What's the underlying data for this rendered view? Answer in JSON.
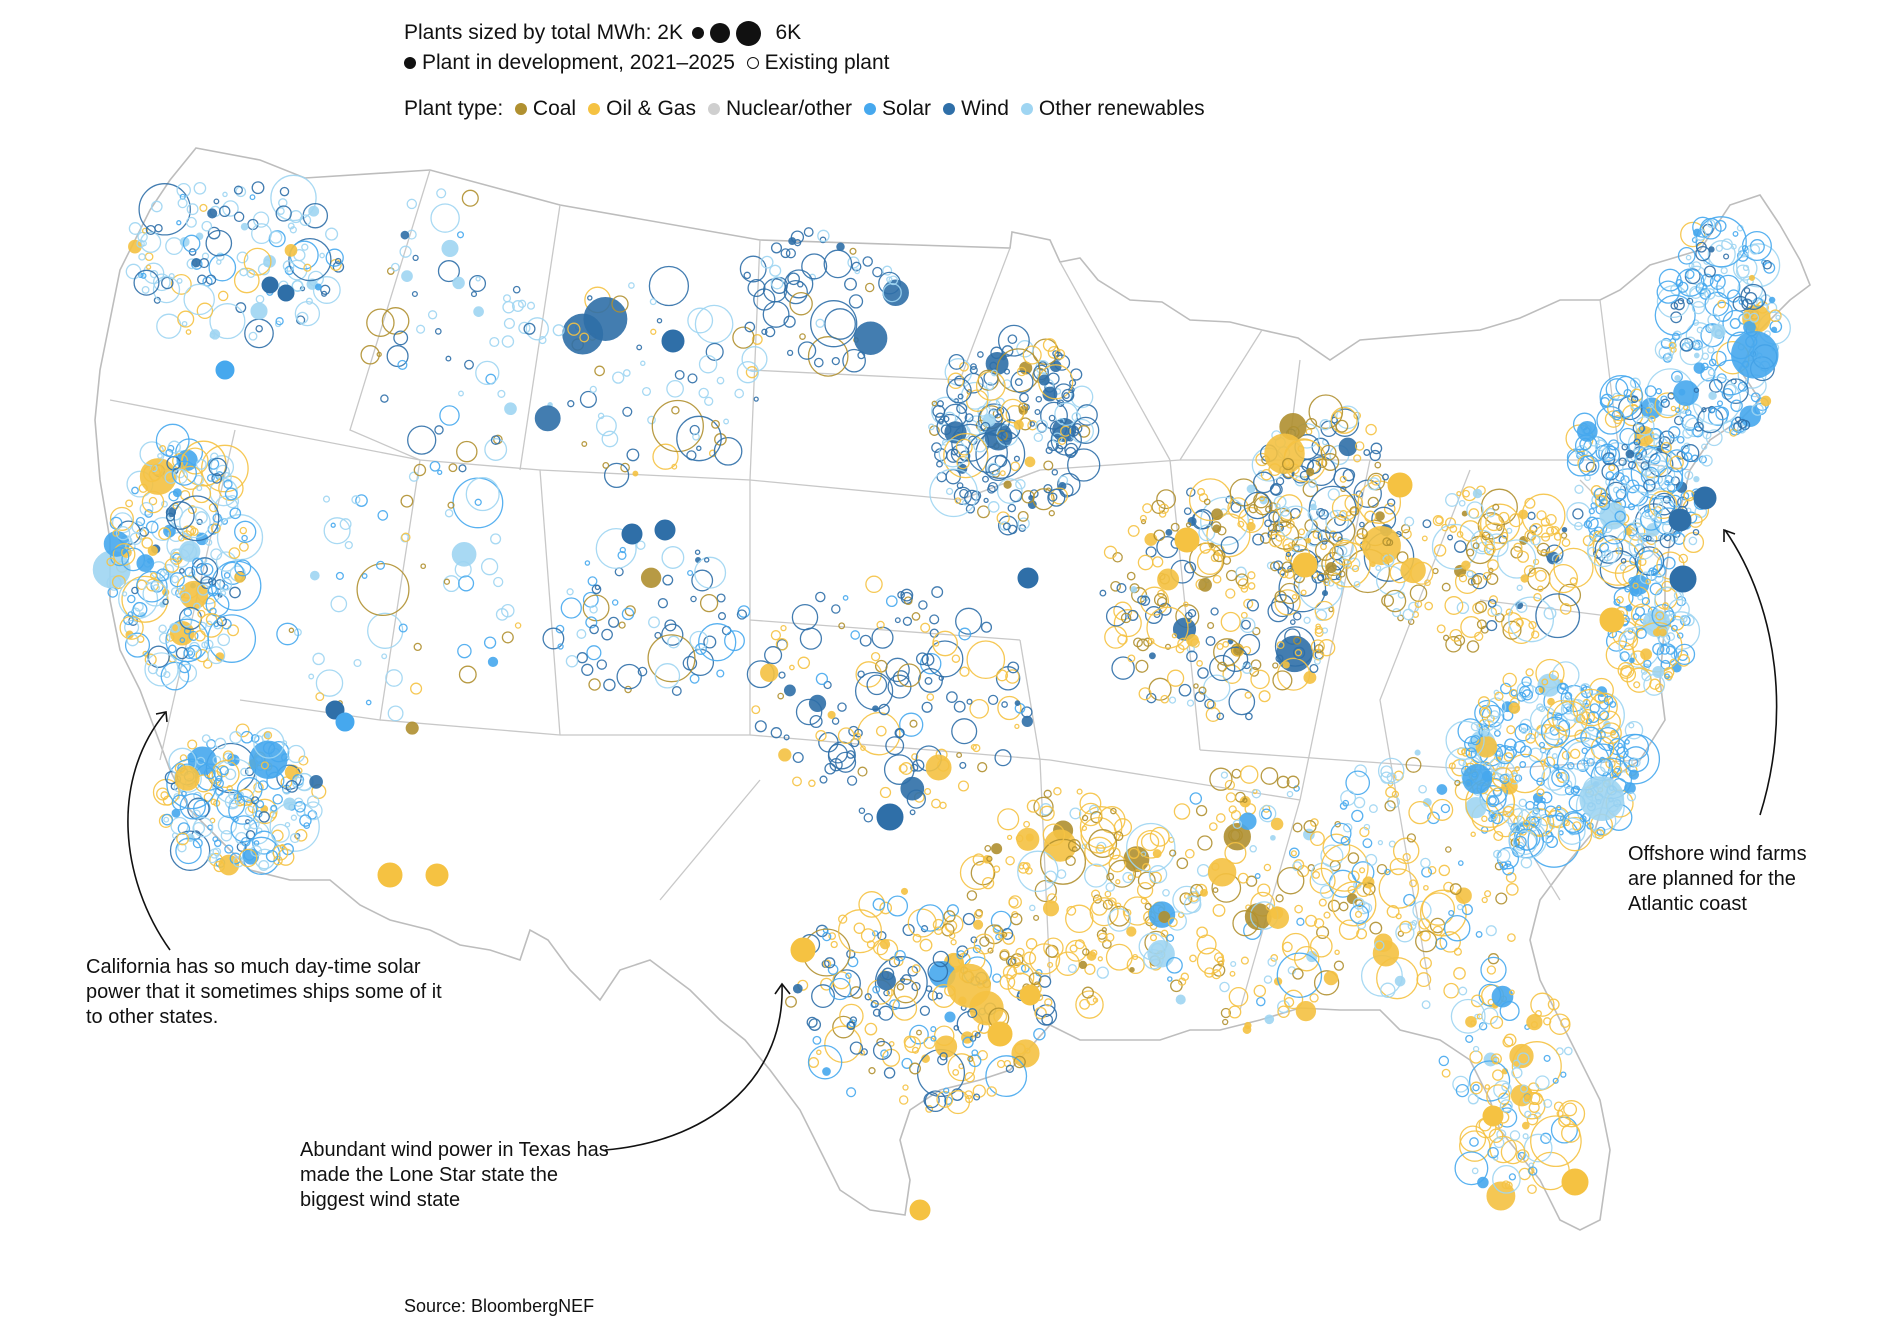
{
  "legend": {
    "size_title": "Plants sized by total MWh:",
    "size_min": "2K",
    "size_max": "6K",
    "dev_label": "Plant in development, 2021–2025",
    "existing_label": "Existing plant",
    "type_title": "Plant type:",
    "types": [
      {
        "name": "Coal",
        "color": "#b09030"
      },
      {
        "name": "Oil & Gas",
        "color": "#f5c242"
      },
      {
        "name": "Nuclear/other",
        "color": "#cfcfcf"
      },
      {
        "name": "Solar",
        "color": "#46a8ee"
      },
      {
        "name": "Wind",
        "color": "#2f6fa8"
      },
      {
        "name": "Other renewables",
        "color": "#9fd5f2"
      }
    ]
  },
  "annotations": {
    "california": "California has so much day-time solar power that it sometimes ships some of it to other states.",
    "texas": "Abundant wind power in Texas has made the Lone Star state the biggest wind state",
    "atlantic": "Offshore wind farms are planned for the Atlantic coast"
  },
  "source": "Source: BloombergNEF",
  "colors": {
    "border": "#bdbdbd",
    "coal": "#b09030",
    "gas": "#f5c242",
    "nuclear": "#cfcfcf",
    "solar": "#46a8ee",
    "wind": "#2f6fa8",
    "other": "#9fd5f2"
  }
}
